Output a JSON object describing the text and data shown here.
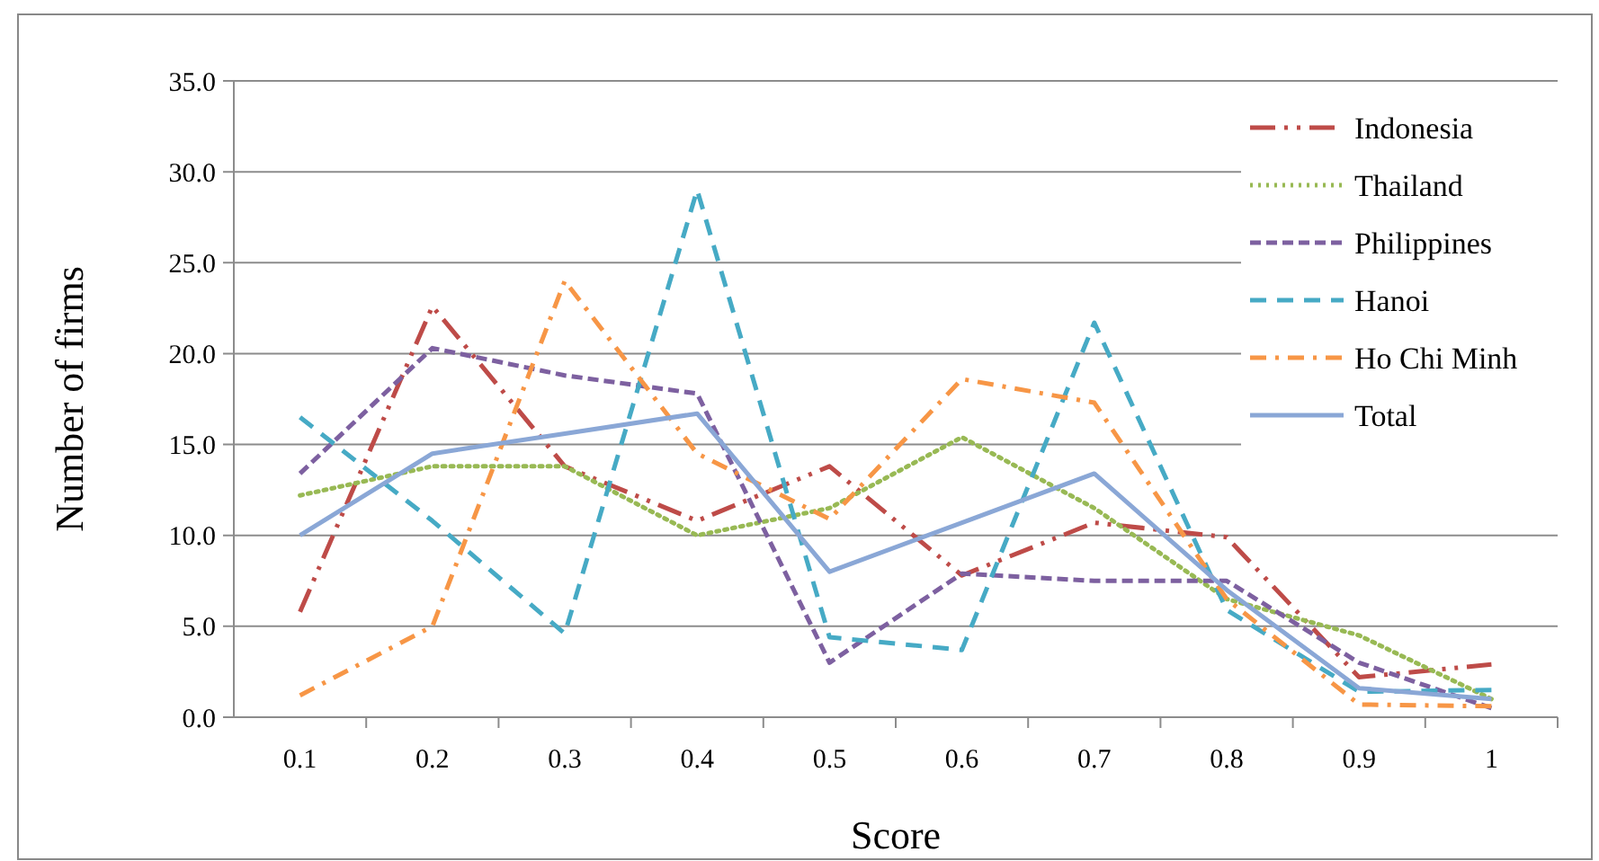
{
  "chart_data": {
    "type": "line",
    "xlabel": "Score",
    "ylabel": "Number of firms",
    "categories": [
      "0.1",
      "0.2",
      "0.3",
      "0.4",
      "0.5",
      "0.6",
      "0.7",
      "0.8",
      "0.9",
      "1"
    ],
    "ylim": [
      0,
      35
    ],
    "yticks": [
      {
        "value": 0,
        "label": "0.0"
      },
      {
        "value": 5,
        "label": "5.0"
      },
      {
        "value": 10,
        "label": "10.0"
      },
      {
        "value": 15,
        "label": "15.0"
      },
      {
        "value": 20,
        "label": "20.0"
      },
      {
        "value": 25,
        "label": "25.0"
      },
      {
        "value": 30,
        "label": "30.0"
      },
      {
        "value": 35,
        "label": "35.0"
      }
    ],
    "grid": "y",
    "legend": "top right",
    "marker": "none",
    "series": [
      {
        "name": "Indonesia",
        "color": "#be4b48",
        "line_style": "dashdotdot",
        "values": [
          5.8,
          22.6,
          13.8,
          10.8,
          13.8,
          7.8,
          10.7,
          9.9,
          2.2,
          2.9
        ]
      },
      {
        "name": "Thailand",
        "color": "#98b954",
        "line_style": "dotted",
        "values": [
          12.2,
          13.8,
          13.8,
          10.0,
          11.5,
          15.4,
          11.5,
          6.5,
          4.5,
          1.0
        ]
      },
      {
        "name": "Philippines",
        "color": "#7d60a0",
        "line_style": "dashed",
        "values": [
          13.4,
          20.3,
          18.8,
          17.8,
          3.0,
          7.9,
          7.5,
          7.5,
          3.0,
          0.5
        ]
      },
      {
        "name": "Hanoi",
        "color": "#46aac5",
        "line_style": "longdash",
        "values": [
          16.5,
          10.8,
          4.6,
          29.0,
          4.4,
          3.7,
          21.7,
          5.9,
          1.4,
          1.5
        ]
      },
      {
        "name": "Ho Chi Minh",
        "color": "#f79646",
        "line_style": "dashdot",
        "values": [
          1.2,
          5.0,
          24.0,
          14.5,
          10.9,
          18.6,
          17.3,
          6.5,
          0.7,
          0.6
        ]
      },
      {
        "name": "Total",
        "color": "#8aa7d6",
        "line_style": "solid",
        "values": [
          10.0,
          14.5,
          15.6,
          16.7,
          8.0,
          10.7,
          13.4,
          7.0,
          1.6,
          1.0
        ]
      }
    ]
  }
}
